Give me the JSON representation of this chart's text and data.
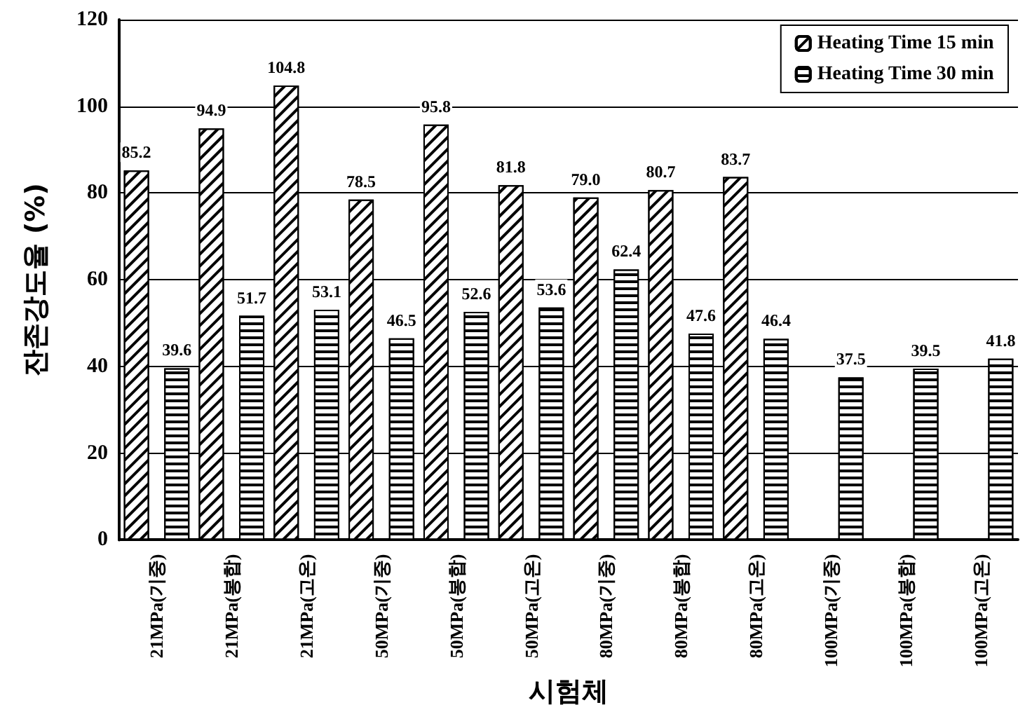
{
  "chart_data": {
    "type": "bar",
    "xlabel": "시험체",
    "ylabel": "잔존강도율 (%)",
    "categories": [
      "21MPa(기중)",
      "21MPa(봉합)",
      "21MPa(고온)",
      "50MPa(기중)",
      "50MPa(봉합)",
      "50MPa(고온)",
      "80MPa(기중)",
      "80MPa(봉합)",
      "80MPa(고온)",
      "100MPa(기중)",
      "100MPa(봉합)",
      "100MPa(고온)"
    ],
    "series": [
      {
        "name": "Heating Time 15 min",
        "color": "#000000",
        "values": [
          85.2,
          94.9,
          104.8,
          78.5,
          95.8,
          81.8,
          79.0,
          80.7,
          83.7,
          null,
          null,
          null
        ],
        "value_labels": [
          "85.2",
          "94.9",
          "104.8",
          "78.5",
          "95.8",
          "81.8",
          "79.0",
          "80.7",
          "83.7",
          null,
          null,
          null
        ]
      },
      {
        "name": "Heating Time 30 min",
        "color": "#000000",
        "values": [
          39.6,
          51.7,
          53.1,
          46.5,
          52.6,
          53.6,
          62.4,
          47.6,
          46.4,
          37.5,
          39.5,
          41.8
        ],
        "value_labels": [
          "39.6",
          "51.7",
          "53.1",
          "46.5",
          "52.6",
          "53.6",
          "62.4",
          "47.6",
          "46.4",
          "37.5",
          "39.5",
          "41.8"
        ]
      }
    ],
    "ylim": [
      0,
      120
    ],
    "yticks": [
      0,
      20,
      40,
      60,
      80,
      100,
      120
    ],
    "grid": "y",
    "legend": "top right"
  }
}
